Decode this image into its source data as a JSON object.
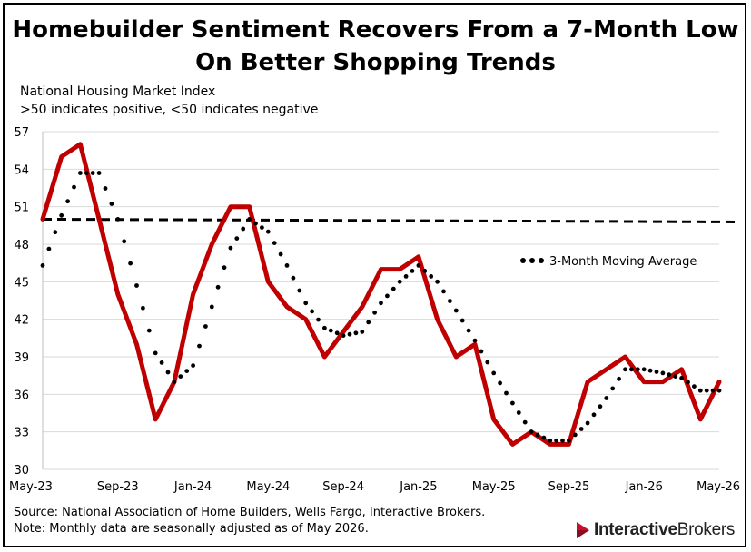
{
  "title_line1": "Homebuilder Sentiment Recovers From a 7-Month Low",
  "title_line2": "On Better Shopping Trends",
  "subtitle_line1": "National Housing Market Index",
  "subtitle_line2": ">50 indicates positive, <50 indicates negative",
  "source": "Source: National Association of Home Builders, Wells Fargo, Interactive Brokers.",
  "note": "Note: Monthly data are seasonally adjusted as of May 2026.",
  "logo": {
    "part1": "Interactive",
    "part2": "Brokers",
    "icon": "ib-logo-icon",
    "color": "#c8102e"
  },
  "colors": {
    "index_line": "#c00000",
    "moving_average": "#000000",
    "threshold": "#000000",
    "grid": "#d9d9d9"
  },
  "chart_data": {
    "type": "line",
    "title": "Homebuilder Sentiment Recovers From a 7-Month Low On Better Shopping Trends",
    "ylabel": "",
    "xlabel": "",
    "ylim": [
      30,
      57
    ],
    "yticks": [
      30,
      33,
      36,
      39,
      42,
      45,
      48,
      51,
      54,
      57
    ],
    "ytick_labels": [
      "30",
      "33",
      "36",
      "39",
      "42",
      "45",
      "48",
      "51",
      "54",
      "57"
    ],
    "x": [
      "May-23",
      "Jun-23",
      "Jul-23",
      "Aug-23",
      "Sep-23",
      "Oct-23",
      "Nov-23",
      "Dec-23",
      "Jan-24",
      "Feb-24",
      "Mar-24",
      "Apr-24",
      "May-24",
      "Jun-24",
      "Jul-24",
      "Aug-24",
      "Sep-24",
      "Oct-24",
      "Nov-24",
      "Dec-24",
      "Jan-25",
      "Feb-25",
      "Mar-25",
      "Apr-25",
      "May-25",
      "Jun-25",
      "Jul-25",
      "Aug-25",
      "Sep-25",
      "Oct-25",
      "Nov-25",
      "Dec-25",
      "Jan-26",
      "Feb-26",
      "Mar-26",
      "Apr-26",
      "May-26"
    ],
    "xtick_labels": [
      "May-23",
      "Sep-23",
      "Jan-24",
      "May-24",
      "Sep-24",
      "Jan-25",
      "May-25",
      "Sep-25",
      "Jan-26",
      "May-26"
    ],
    "series": [
      {
        "values": [
          50,
          55,
          56,
          50,
          44,
          40,
          34,
          37,
          44,
          48,
          51,
          51,
          45,
          43,
          42,
          39,
          41,
          43,
          46,
          46,
          47,
          42,
          39,
          40,
          34,
          32,
          33,
          32,
          32,
          37,
          38,
          39,
          37,
          37,
          38,
          34,
          37
        ]
      },
      {
        "name": "3-Month Moving Average",
        "style": "dotted",
        "values": [
          46.3,
          50.3,
          53.7,
          53.7,
          50.0,
          44.7,
          39.3,
          37.0,
          38.3,
          43.0,
          47.7,
          50.0,
          49.0,
          46.3,
          43.3,
          41.3,
          40.7,
          41.0,
          43.3,
          45.0,
          46.3,
          45.0,
          42.7,
          40.3,
          37.7,
          35.3,
          33.0,
          32.3,
          32.3,
          33.7,
          35.7,
          38.0,
          38.0,
          37.7,
          37.3,
          36.3,
          36.3
        ]
      }
    ],
    "reference_line": {
      "value": 50,
      "style": "dashed"
    },
    "grid": true,
    "legend_position": "right"
  }
}
